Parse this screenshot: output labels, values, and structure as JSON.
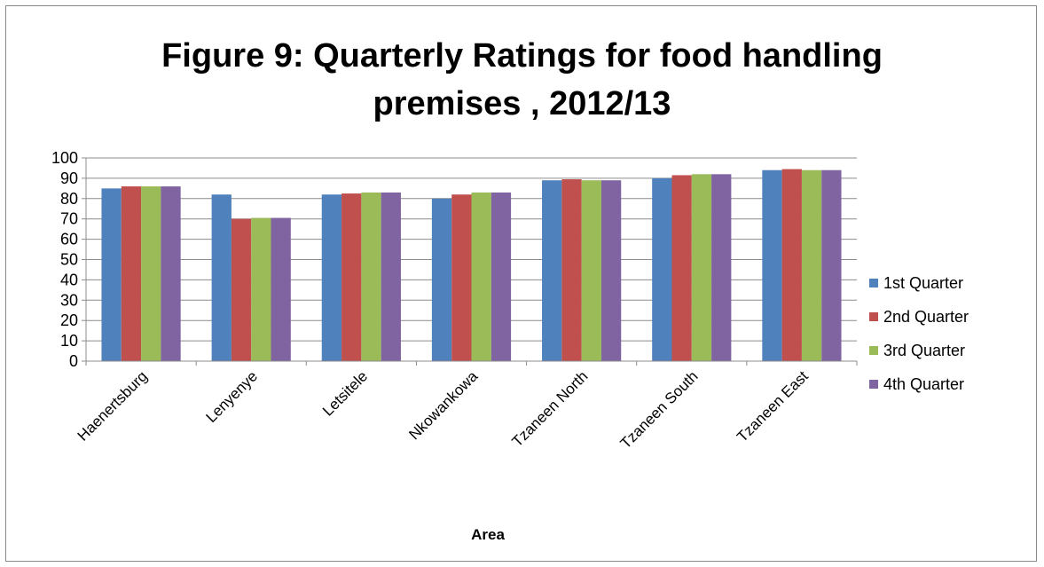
{
  "chart_data": {
    "type": "bar",
    "title_line1": "Figure 9: Quarterly Ratings for food handling",
    "title_line2": "premises , 2012/13",
    "xlabel": "Area",
    "ylabel": "",
    "ylim": [
      0,
      100
    ],
    "ytick_step": 10,
    "grid": true,
    "legend_position": "right",
    "categories": [
      "Haenertsburg",
      "Lenyenye",
      "Letsitele",
      "Nkowankowa",
      "Tzaneen North",
      "Tzaneen South",
      "Tzaneen East"
    ],
    "series": [
      {
        "name": "1st Quarter",
        "color": "#4f81bd",
        "values": [
          85,
          82,
          82,
          80,
          89,
          90,
          94
        ]
      },
      {
        "name": "2nd Quarter",
        "color": "#c0504d",
        "values": [
          86,
          70,
          82.5,
          82,
          89.5,
          91.5,
          94.5
        ]
      },
      {
        "name": "3rd Quarter",
        "color": "#9bbb59",
        "values": [
          86,
          70.5,
          83,
          83,
          89,
          92,
          94
        ]
      },
      {
        "name": "4th Quarter",
        "color": "#8064a2",
        "values": [
          86,
          70.5,
          83,
          83,
          89,
          92,
          94
        ]
      }
    ]
  }
}
